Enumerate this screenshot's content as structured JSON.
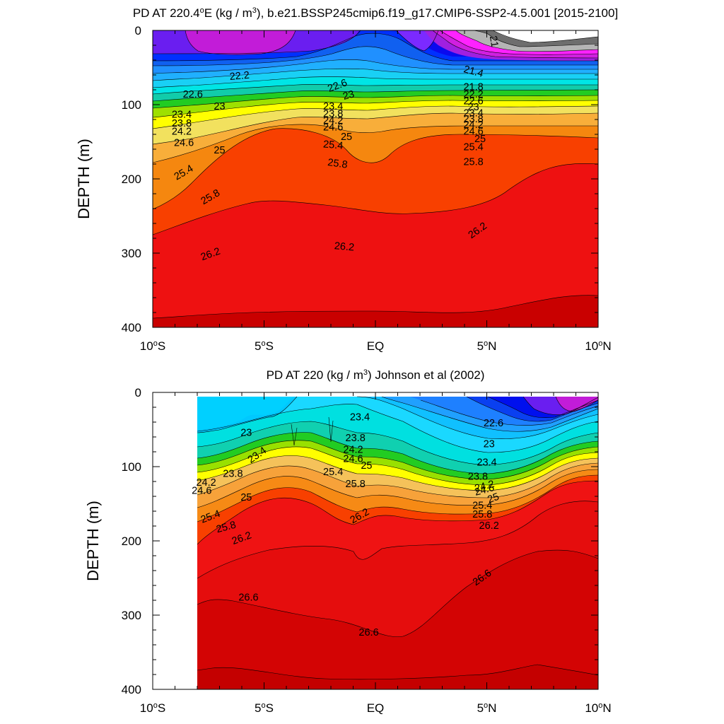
{
  "chart_data": [
    {
      "type": "heatmap",
      "title": "PD AT 220.4",
      "title_sup": "o",
      "title_mid": "E (kg / m",
      "title_sup2": "3",
      "title_end": "), b.e21.BSSP245cmip6.f19_g17.CMIP6-SSP2-4.5.001 [2015-2100]",
      "ylabel": "DEPTH (m)",
      "xlim": [
        -10,
        10
      ],
      "ylim": [
        0,
        400
      ],
      "y_reversed": true,
      "xticks": [
        {
          "v": -10,
          "label": "10",
          "sup": "o",
          "suf": "S"
        },
        {
          "v": -5,
          "label": "5",
          "sup": "o",
          "suf": "S"
        },
        {
          "v": 0,
          "label": "EQ",
          "sup": "",
          "suf": ""
        },
        {
          "v": 5,
          "label": "5",
          "sup": "o",
          "suf": "N"
        },
        {
          "v": 10,
          "label": "10",
          "sup": "o",
          "suf": "N"
        }
      ],
      "yticks": [
        "0",
        "100",
        "200",
        "300",
        "400"
      ],
      "ytick_values": [
        0,
        100,
        200,
        300,
        400
      ],
      "contour_labels": [
        {
          "x": -6.1,
          "y": 62,
          "text": "22.2",
          "rot": -5
        },
        {
          "x": -8.2,
          "y": 87,
          "text": "22.6",
          "rot": 0
        },
        {
          "x": -7.0,
          "y": 103,
          "text": "23",
          "rot": 0
        },
        {
          "x": -8.7,
          "y": 114,
          "text": "23.4",
          "rot": 0
        },
        {
          "x": -8.7,
          "y": 126,
          "text": "23.8",
          "rot": 0
        },
        {
          "x": -8.7,
          "y": 137,
          "text": "24.2",
          "rot": 0
        },
        {
          "x": -8.6,
          "y": 152,
          "text": "24.6",
          "rot": 0
        },
        {
          "x": -7.0,
          "y": 162,
          "text": "25",
          "rot": 0
        },
        {
          "x": -8.6,
          "y": 192,
          "text": "25.4",
          "rot": -30
        },
        {
          "x": -7.4,
          "y": 225,
          "text": "25.8",
          "rot": -30
        },
        {
          "x": -7.4,
          "y": 302,
          "text": "26.2",
          "rot": -20
        },
        {
          "x": -1.7,
          "y": 75,
          "text": "22.6",
          "rot": -20
        },
        {
          "x": -1.2,
          "y": 88,
          "text": "23",
          "rot": -15
        },
        {
          "x": -1.9,
          "y": 103,
          "text": "23.4",
          "rot": 0
        },
        {
          "x": -1.9,
          "y": 113,
          "text": "23.8",
          "rot": 0
        },
        {
          "x": -1.9,
          "y": 122,
          "text": "24.2",
          "rot": 0
        },
        {
          "x": -1.9,
          "y": 131,
          "text": "24.6",
          "rot": 0
        },
        {
          "x": -1.3,
          "y": 144,
          "text": "25",
          "rot": 0
        },
        {
          "x": -1.9,
          "y": 155,
          "text": "25.4",
          "rot": 5
        },
        {
          "x": -1.7,
          "y": 180,
          "text": "25.8",
          "rot": 8
        },
        {
          "x": -1.4,
          "y": 292,
          "text": "26.2",
          "rot": 5
        },
        {
          "x": 5.3,
          "y": 15,
          "text": "21",
          "rot": 80
        },
        {
          "x": 4.4,
          "y": 56,
          "text": "21.4",
          "rot": 15
        },
        {
          "x": 4.4,
          "y": 77,
          "text": "21.8",
          "rot": 0
        },
        {
          "x": 4.4,
          "y": 87,
          "text": "22.2",
          "rot": 0
        },
        {
          "x": 4.4,
          "y": 96,
          "text": "22.6",
          "rot": 0
        },
        {
          "x": 4.4,
          "y": 104,
          "text": "23",
          "rot": 0
        },
        {
          "x": 4.4,
          "y": 112,
          "text": "23.4",
          "rot": 0
        },
        {
          "x": 4.4,
          "y": 120,
          "text": "23.8",
          "rot": 0
        },
        {
          "x": 4.4,
          "y": 128,
          "text": "24.2",
          "rot": 0
        },
        {
          "x": 4.4,
          "y": 137,
          "text": "24.6",
          "rot": 0
        },
        {
          "x": 4.7,
          "y": 147,
          "text": "25",
          "rot": 0
        },
        {
          "x": 4.4,
          "y": 158,
          "text": "25.4",
          "rot": 0
        },
        {
          "x": 4.4,
          "y": 178,
          "text": "25.8",
          "rot": 0
        },
        {
          "x": 4.6,
          "y": 270,
          "text": "26.2",
          "rot": -35
        }
      ]
    },
    {
      "type": "heatmap",
      "title": "PD AT 220 (kg / m",
      "title_sup": "3",
      "title_end": ") Johnson et al (2002)",
      "ylabel": "DEPTH (m)",
      "xlim": [
        -10,
        10
      ],
      "ylim": [
        0,
        400
      ],
      "y_reversed": true,
      "xticks": [
        {
          "v": -10,
          "label": "10",
          "sup": "o",
          "suf": "S"
        },
        {
          "v": -5,
          "label": "5",
          "sup": "o",
          "suf": "S"
        },
        {
          "v": 0,
          "label": "EQ",
          "sup": "",
          "suf": ""
        },
        {
          "v": 5,
          "label": "5",
          "sup": "o",
          "suf": "N"
        },
        {
          "v": 10,
          "label": "10",
          "sup": "o",
          "suf": "N"
        }
      ],
      "yticks": [
        "0",
        "100",
        "200",
        "300",
        "400"
      ],
      "ytick_values": [
        0,
        100,
        200,
        300,
        400
      ],
      "contour_labels": [
        {
          "x": -5.8,
          "y": 55,
          "text": "23",
          "rot": 0
        },
        {
          "x": -5.3,
          "y": 85,
          "text": "23.4",
          "rot": -35
        },
        {
          "x": -6.4,
          "y": 110,
          "text": "23.8",
          "rot": 0
        },
        {
          "x": -7.6,
          "y": 122,
          "text": "24.2",
          "rot": 0
        },
        {
          "x": -7.8,
          "y": 133,
          "text": "24.6",
          "rot": 0
        },
        {
          "x": -5.8,
          "y": 142,
          "text": "25",
          "rot": 0
        },
        {
          "x": -7.4,
          "y": 168,
          "text": "25.4",
          "rot": -20
        },
        {
          "x": -6.7,
          "y": 182,
          "text": "25.8",
          "rot": -15
        },
        {
          "x": -6.0,
          "y": 197,
          "text": "26.2",
          "rot": -20
        },
        {
          "x": -0.7,
          "y": 34,
          "text": "23.4",
          "rot": 0
        },
        {
          "x": -0.9,
          "y": 62,
          "text": "23.8",
          "rot": 0
        },
        {
          "x": -1.0,
          "y": 78,
          "text": "24.2",
          "rot": 0
        },
        {
          "x": -1.0,
          "y": 90,
          "text": "24.6",
          "rot": 0
        },
        {
          "x": -0.4,
          "y": 99,
          "text": "25",
          "rot": 0
        },
        {
          "x": -1.9,
          "y": 108,
          "text": "25.4",
          "rot": 0
        },
        {
          "x": -0.9,
          "y": 124,
          "text": "25.8",
          "rot": 0
        },
        {
          "x": -0.7,
          "y": 167,
          "text": "26.2",
          "rot": -30
        },
        {
          "x": -5.7,
          "y": 277,
          "text": "26.6",
          "rot": 0
        },
        {
          "x": -0.3,
          "y": 324,
          "text": "26.6",
          "rot": 0
        },
        {
          "x": 5.3,
          "y": 42,
          "text": "22.6",
          "rot": 0
        },
        {
          "x": 5.1,
          "y": 70,
          "text": "23",
          "rot": 0
        },
        {
          "x": 5.0,
          "y": 95,
          "text": "23.4",
          "rot": 0
        },
        {
          "x": 4.6,
          "y": 114,
          "text": "23.8",
          "rot": 0
        },
        {
          "x": 4.9,
          "y": 127,
          "text": "24.2",
          "rot": -15
        },
        {
          "x": 4.9,
          "y": 132,
          "text": "24.6",
          "rot": -15
        },
        {
          "x": 5.3,
          "y": 143,
          "text": "25",
          "rot": -20
        },
        {
          "x": 4.8,
          "y": 153,
          "text": "25.4",
          "rot": 0
        },
        {
          "x": 4.8,
          "y": 165,
          "text": "25.8",
          "rot": 0
        },
        {
          "x": 5.1,
          "y": 180,
          "text": "26.2",
          "rot": 0
        },
        {
          "x": 4.8,
          "y": 250,
          "text": "26.6",
          "rot": -35
        }
      ]
    }
  ]
}
